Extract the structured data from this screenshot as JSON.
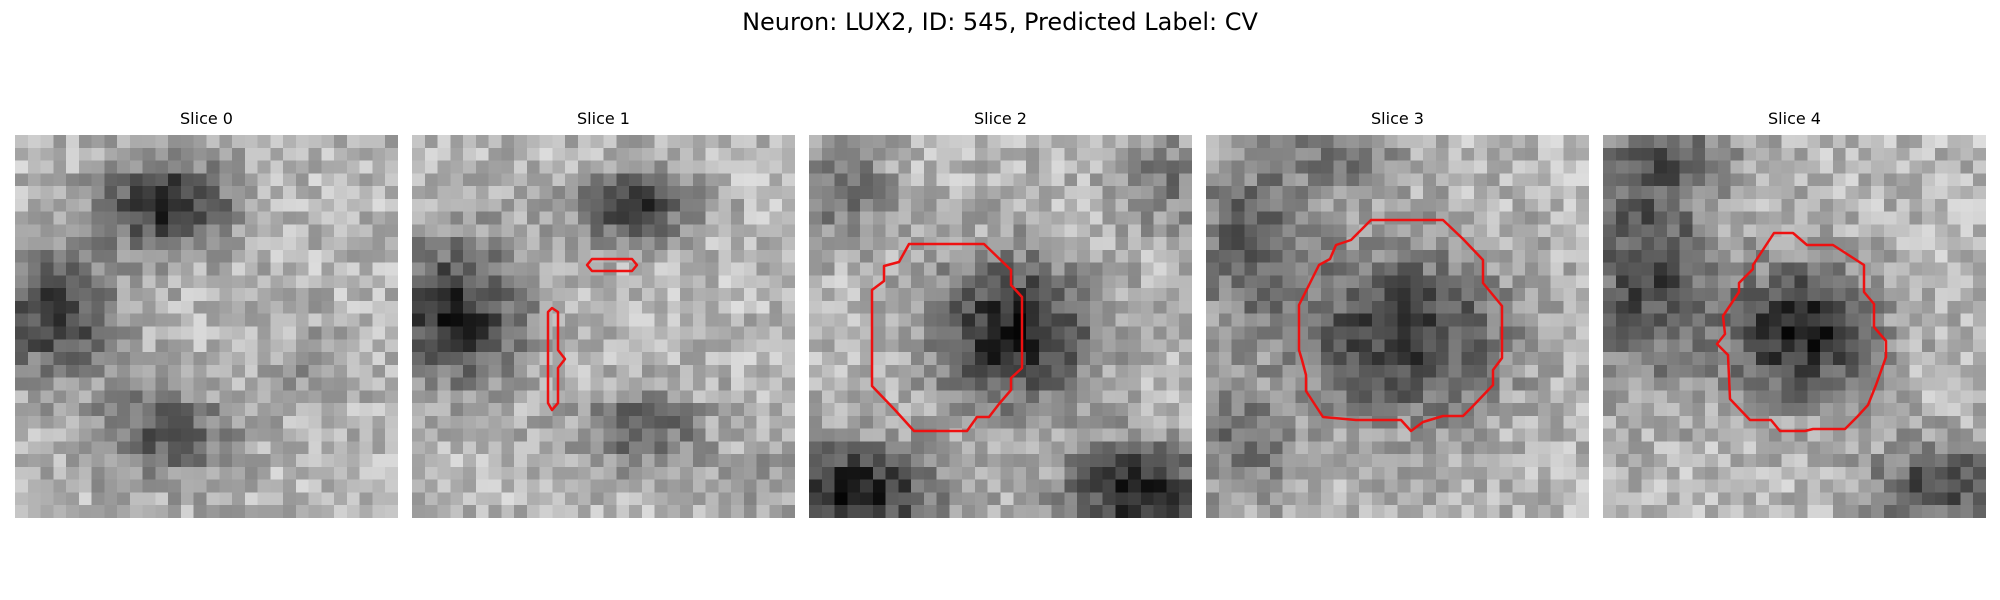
{
  "figure": {
    "title": "Neuron: LUX2, ID: 545, Predicted Label: CV",
    "outline_color": "#ee1111",
    "colormap": "grayscale",
    "slices": [
      {
        "label": "Slice 0"
      },
      {
        "label": "Slice 1"
      },
      {
        "label": "Slice 2"
      },
      {
        "label": "Slice 3"
      },
      {
        "label": "Slice 4"
      }
    ]
  }
}
